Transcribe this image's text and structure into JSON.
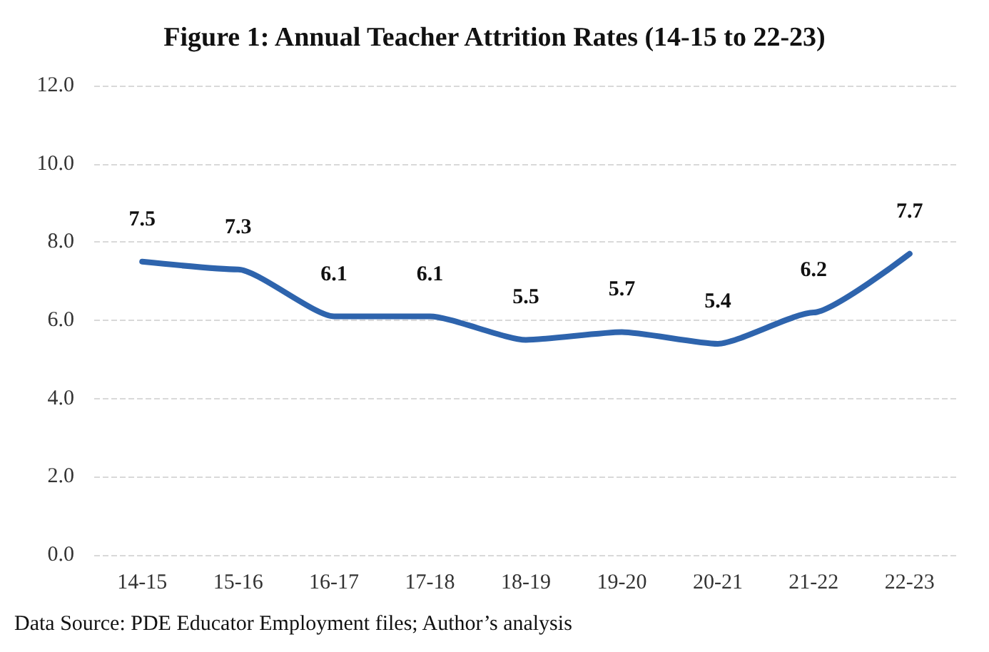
{
  "chart_data": {
    "type": "line",
    "title": "Figure 1: Annual Teacher Attrition Rates (14-15 to 22-23)",
    "categories": [
      "14-15",
      "15-16",
      "16-17",
      "17-18",
      "18-19",
      "19-20",
      "20-21",
      "21-22",
      "22-23"
    ],
    "series": [
      {
        "color": "#2e64ad",
        "values": [
          7.5,
          7.3,
          6.1,
          6.1,
          5.5,
          5.7,
          5.4,
          6.2,
          7.7
        ]
      }
    ],
    "ylim": [
      0,
      12
    ],
    "yticks": [
      {
        "value": 0,
        "label": "0.0"
      },
      {
        "value": 2,
        "label": "2.0"
      },
      {
        "value": 4,
        "label": "4.0"
      },
      {
        "value": 6,
        "label": "6.0"
      },
      {
        "value": 8,
        "label": "8.0"
      },
      {
        "value": 10,
        "label": "10.0"
      },
      {
        "value": 12,
        "label": "12.0"
      }
    ],
    "grid": "y",
    "marker": "none",
    "line_style": "solid",
    "data_labels": true,
    "annotations": [
      "Data Source: PDE Educator Employment files; Author’s analysis"
    ]
  }
}
